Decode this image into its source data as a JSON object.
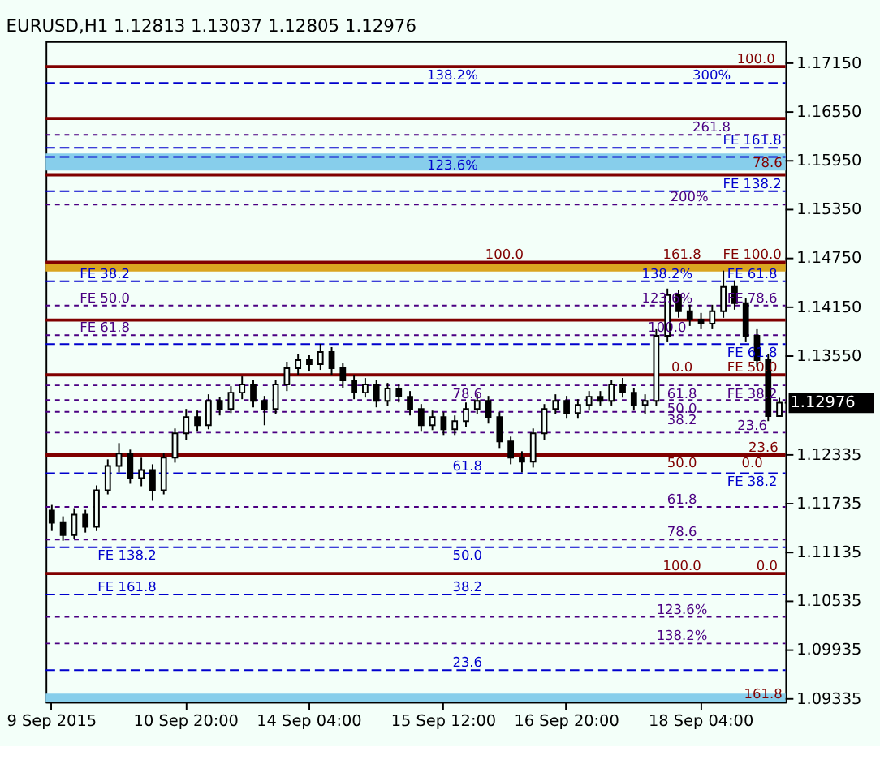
{
  "chart_data": {
    "type": "candlestick",
    "title": "EURUSD,H1  1.12813 1.13037 1.12805 1.12976",
    "categories": [
      "9 Sep 2015",
      null,
      null,
      null,
      null,
      null,
      null,
      null,
      null,
      null,
      null,
      null,
      "10 Sep 20:00",
      null,
      null,
      null,
      null,
      null,
      null,
      null,
      null,
      null,
      null,
      "14 Sep 04:00",
      null,
      null,
      null,
      null,
      null,
      null,
      null,
      null,
      null,
      null,
      null,
      "15 Sep 12:00",
      null,
      null,
      null,
      null,
      null,
      null,
      null,
      null,
      null,
      null,
      "16 Sep 20:00",
      null,
      null,
      null,
      null,
      null,
      null,
      null,
      null,
      null,
      null,
      null,
      "18 Sep 04:00",
      null,
      null,
      null,
      null,
      null,
      null,
      null
    ],
    "ohlc": [
      [
        1.1165,
        1.1172,
        1.114,
        1.115
      ],
      [
        1.115,
        1.1158,
        1.1128,
        1.1135
      ],
      [
        1.1135,
        1.1168,
        1.113,
        1.116
      ],
      [
        1.116,
        1.1166,
        1.1138,
        1.1145
      ],
      [
        1.1145,
        1.1196,
        1.114,
        1.119
      ],
      [
        1.119,
        1.1228,
        1.1185,
        1.122
      ],
      [
        1.122,
        1.1248,
        1.1212,
        1.1235
      ],
      [
        1.1235,
        1.124,
        1.1198,
        1.1205
      ],
      [
        1.1205,
        1.123,
        1.1195,
        1.1215
      ],
      [
        1.1215,
        1.1222,
        1.1177,
        1.119
      ],
      [
        1.119,
        1.1236,
        1.1185,
        1.123
      ],
      [
        1.123,
        1.1266,
        1.1224,
        1.126
      ],
      [
        1.126,
        1.129,
        1.1252,
        1.128
      ],
      [
        1.128,
        1.1288,
        1.1262,
        1.127
      ],
      [
        1.127,
        1.1308,
        1.1265,
        1.13
      ],
      [
        1.13,
        1.1305,
        1.1282,
        1.129
      ],
      [
        1.129,
        1.1318,
        1.1285,
        1.131
      ],
      [
        1.131,
        1.133,
        1.1302,
        1.132
      ],
      [
        1.132,
        1.1326,
        1.1292,
        1.13
      ],
      [
        1.13,
        1.1306,
        1.127,
        1.129
      ],
      [
        1.129,
        1.1326,
        1.1284,
        1.132
      ],
      [
        1.132,
        1.1348,
        1.1312,
        1.134
      ],
      [
        1.134,
        1.1358,
        1.1332,
        1.135
      ],
      [
        1.135,
        1.1356,
        1.1336,
        1.1345
      ],
      [
        1.1345,
        1.137,
        1.1338,
        1.136
      ],
      [
        1.136,
        1.1366,
        1.1332,
        1.134
      ],
      [
        1.134,
        1.1346,
        1.1316,
        1.1325
      ],
      [
        1.1325,
        1.1332,
        1.1302,
        1.131
      ],
      [
        1.131,
        1.1328,
        1.1304,
        1.132
      ],
      [
        1.132,
        1.1326,
        1.1292,
        1.13
      ],
      [
        1.13,
        1.1322,
        1.1294,
        1.1315
      ],
      [
        1.1315,
        1.132,
        1.1298,
        1.1305
      ],
      [
        1.1305,
        1.1312,
        1.1282,
        1.129
      ],
      [
        1.129,
        1.1296,
        1.1262,
        1.127
      ],
      [
        1.127,
        1.1288,
        1.1264,
        1.128
      ],
      [
        1.128,
        1.1286,
        1.1258,
        1.1265
      ],
      [
        1.1265,
        1.1282,
        1.1258,
        1.1275
      ],
      [
        1.1275,
        1.1298,
        1.1268,
        1.129
      ],
      [
        1.129,
        1.1308,
        1.1284,
        1.13
      ],
      [
        1.13,
        1.1306,
        1.1272,
        1.128
      ],
      [
        1.128,
        1.1286,
        1.1242,
        1.125
      ],
      [
        1.125,
        1.1256,
        1.1222,
        1.123
      ],
      [
        1.123,
        1.1238,
        1.1212,
        1.1225
      ],
      [
        1.1225,
        1.1266,
        1.1218,
        1.126
      ],
      [
        1.126,
        1.1296,
        1.1252,
        1.129
      ],
      [
        1.129,
        1.1308,
        1.1284,
        1.13
      ],
      [
        1.13,
        1.1306,
        1.1278,
        1.1285
      ],
      [
        1.1285,
        1.1302,
        1.1278,
        1.1295
      ],
      [
        1.1295,
        1.1312,
        1.1288,
        1.1305
      ],
      [
        1.1305,
        1.1312,
        1.1294,
        1.13
      ],
      [
        1.13,
        1.1326,
        1.1294,
        1.132
      ],
      [
        1.132,
        1.1328,
        1.1304,
        1.131
      ],
      [
        1.131,
        1.1316,
        1.1288,
        1.1295
      ],
      [
        1.1295,
        1.1308,
        1.1284,
        1.13
      ],
      [
        1.13,
        1.1388,
        1.1294,
        1.138
      ],
      [
        1.138,
        1.1438,
        1.1372,
        1.143
      ],
      [
        1.143,
        1.1436,
        1.1402,
        1.141
      ],
      [
        1.141,
        1.1418,
        1.1392,
        1.14
      ],
      [
        1.14,
        1.1408,
        1.1388,
        1.1395
      ],
      [
        1.1395,
        1.1418,
        1.1388,
        1.141
      ],
      [
        1.141,
        1.146,
        1.1402,
        1.144
      ],
      [
        1.144,
        1.1448,
        1.1412,
        1.142
      ],
      [
        1.142,
        1.1426,
        1.1372,
        1.138
      ],
      [
        1.138,
        1.1388,
        1.1342,
        1.135
      ],
      [
        1.135,
        1.1358,
        1.1275,
        1.12813
      ],
      [
        1.12813,
        1.13037,
        1.12805,
        1.12976
      ]
    ],
    "ylim": [
      1.093,
      1.1742
    ],
    "yticks": [
      {
        "value": 1.09335,
        "label": "1.09335"
      },
      {
        "value": 1.09935,
        "label": "1.09935"
      },
      {
        "value": 1.10535,
        "label": "1.10535"
      },
      {
        "value": 1.11135,
        "label": "1.11135"
      },
      {
        "value": 1.11735,
        "label": "1.11735"
      },
      {
        "value": 1.12335,
        "label": "1.12335"
      },
      {
        "value": 1.1355,
        "label": "1.13550"
      },
      {
        "value": 1.1415,
        "label": "1.14150"
      },
      {
        "value": 1.1475,
        "label": "1.14750"
      },
      {
        "value": 1.1535,
        "label": "1.15350"
      },
      {
        "value": 1.1595,
        "label": "1.15950"
      },
      {
        "value": 1.1655,
        "label": "1.16550"
      },
      {
        "value": 1.1715,
        "label": "1.17150"
      }
    ],
    "bands": [
      {
        "axis": "y",
        "from": 1.1583,
        "to": 1.1604,
        "label": "78.6",
        "color": "#87ceeb"
      },
      {
        "axis": "y",
        "from": 1.093,
        "to": 1.094,
        "label": "161.8",
        "color": "#87ceeb"
      },
      {
        "axis": "y",
        "from": 1.1459,
        "to": 1.147,
        "label": null,
        "color": "#daa520"
      }
    ],
    "ref_lines": [
      {
        "axis": "y",
        "value": 1.17108,
        "color": "#800000",
        "line_style": "solid"
      },
      {
        "axis": "y",
        "value": 1.16908,
        "color": "#0000cd",
        "line_style": "dashed"
      },
      {
        "axis": "y",
        "value": 1.1647,
        "color": "#800000",
        "line_style": "solid"
      },
      {
        "axis": "y",
        "value": 1.1627,
        "color": "#4b0082",
        "line_style": "dotted"
      },
      {
        "axis": "y",
        "value": 1.1611,
        "color": "#0000cd",
        "line_style": "dashed"
      },
      {
        "axis": "y",
        "value": 1.15997,
        "color": "#0000cd",
        "line_style": "dashed"
      },
      {
        "axis": "y",
        "value": 1.15778,
        "color": "#800000",
        "line_style": "solid"
      },
      {
        "axis": "y",
        "value": 1.15576,
        "color": "#0000cd",
        "line_style": "dashed"
      },
      {
        "axis": "y",
        "value": 1.15412,
        "color": "#4b0082",
        "line_style": "dotted"
      },
      {
        "axis": "y",
        "value": 1.14703,
        "color": "#800000",
        "line_style": "solid"
      },
      {
        "axis": "y",
        "value": 1.1447,
        "color": "#0000cd",
        "line_style": "dashed"
      },
      {
        "axis": "y",
        "value": 1.14171,
        "color": "#4b0082",
        "line_style": "dotted"
      },
      {
        "axis": "y",
        "value": 1.13992,
        "color": "#800000",
        "line_style": "solid"
      },
      {
        "axis": "y",
        "value": 1.13807,
        "color": "#4b0082",
        "line_style": "dotted"
      },
      {
        "axis": "y",
        "value": 1.13698,
        "color": "#0000cd",
        "line_style": "dashed"
      },
      {
        "axis": "y",
        "value": 1.13318,
        "color": "#800000",
        "line_style": "solid"
      },
      {
        "axis": "y",
        "value": 1.1319,
        "color": "#4b0082",
        "line_style": "dotted"
      },
      {
        "axis": "y",
        "value": 1.13009,
        "color": "#4b0082",
        "line_style": "dotted"
      },
      {
        "axis": "y",
        "value": 1.12864,
        "color": "#4b0082",
        "line_style": "dotted"
      },
      {
        "axis": "y",
        "value": 1.12609,
        "color": "#4b0082",
        "line_style": "dotted"
      },
      {
        "axis": "y",
        "value": 1.12334,
        "color": "#800000",
        "line_style": "solid"
      },
      {
        "axis": "y",
        "value": 1.1211,
        "color": "#0000cd",
        "line_style": "dashed"
      },
      {
        "axis": "y",
        "value": 1.11695,
        "color": "#4b0082",
        "line_style": "dotted"
      },
      {
        "axis": "y",
        "value": 1.11295,
        "color": "#4b0082",
        "line_style": "dotted"
      },
      {
        "axis": "y",
        "value": 1.112,
        "color": "#0000cd",
        "line_style": "dashed"
      },
      {
        "axis": "y",
        "value": 1.10877,
        "color": "#800000",
        "line_style": "solid"
      },
      {
        "axis": "y",
        "value": 1.10619,
        "color": "#0000cd",
        "line_style": "dashed"
      },
      {
        "axis": "y",
        "value": 1.10345,
        "color": "#4b0082",
        "line_style": "dotted"
      },
      {
        "axis": "y",
        "value": 1.10017,
        "color": "#4b0082",
        "line_style": "dotted"
      },
      {
        "axis": "y",
        "value": 1.0969,
        "color": "#0000cd",
        "line_style": "dashed"
      }
    ],
    "annotations": [
      {
        "text": "100.0",
        "y": 1.17108
      },
      {
        "text": "138.2%",
        "y": 1.16908
      },
      {
        "text": "300%",
        "y": 1.16908
      },
      {
        "text": "261.8",
        "y": 1.1627
      },
      {
        "text": "FE 161.8",
        "y": 1.1611
      },
      {
        "text": "123.6%",
        "y": 1.15997
      },
      {
        "text": "FE 138.2",
        "y": 1.15576
      },
      {
        "text": "200%",
        "y": 1.15412
      },
      {
        "text": "161.8",
        "y": 1.14703
      },
      {
        "text": "FE 100.0",
        "y": 1.14703
      },
      {
        "text": "100.0",
        "y": 1.14703
      },
      {
        "text": "FE 38.2",
        "y": 1.1447
      },
      {
        "text": "FE 61.8",
        "y": 1.1447
      },
      {
        "text": "138.2%",
        "y": 1.1447
      },
      {
        "text": "123.6%",
        "y": 1.14171
      },
      {
        "text": "FE 78.6",
        "y": 1.14171
      },
      {
        "text": "FE 50.0",
        "y": 1.14171
      },
      {
        "text": "100.0",
        "y": 1.13807
      },
      {
        "text": "FE 61.8",
        "y": 1.13807
      },
      {
        "text": "FE 61.8",
        "y": 1.13698
      },
      {
        "text": "0.0",
        "y": 1.13318
      },
      {
        "text": "FE 50.0",
        "y": 1.13318
      },
      {
        "text": "61.8",
        "y": 1.1319
      },
      {
        "text": "78.6",
        "y": 1.1319
      },
      {
        "text": "FE 38.2",
        "y": 1.1319
      },
      {
        "text": "50.0",
        "y": 1.13009
      },
      {
        "text": "38.2",
        "y": 1.12864
      },
      {
        "text": "23.6",
        "y": 1.12609
      },
      {
        "text": "23.6",
        "y": 1.12334
      },
      {
        "text": "0.0",
        "y": 1.12334
      },
      {
        "text": "50.0",
        "y": 1.12334
      },
      {
        "text": "FE 38.2",
        "y": 1.1211
      },
      {
        "text": "61.8",
        "y": 1.1211
      },
      {
        "text": "61.8",
        "y": 1.11695
      },
      {
        "text": "78.6",
        "y": 1.11295
      },
      {
        "text": "50.0",
        "y": 1.112
      },
      {
        "text": "FE 138.2",
        "y": 1.112
      },
      {
        "text": "100.0",
        "y": 1.10877
      },
      {
        "text": "0.0",
        "y": 1.10877
      },
      {
        "text": "FE 161.8",
        "y": 1.10619
      },
      {
        "text": "38.2",
        "y": 1.10619
      },
      {
        "text": "123.6%",
        "y": 1.10345
      },
      {
        "text": "138.2%",
        "y": 1.10017
      },
      {
        "text": "23.6",
        "y": 1.0969
      },
      "1.12976"
    ]
  }
}
